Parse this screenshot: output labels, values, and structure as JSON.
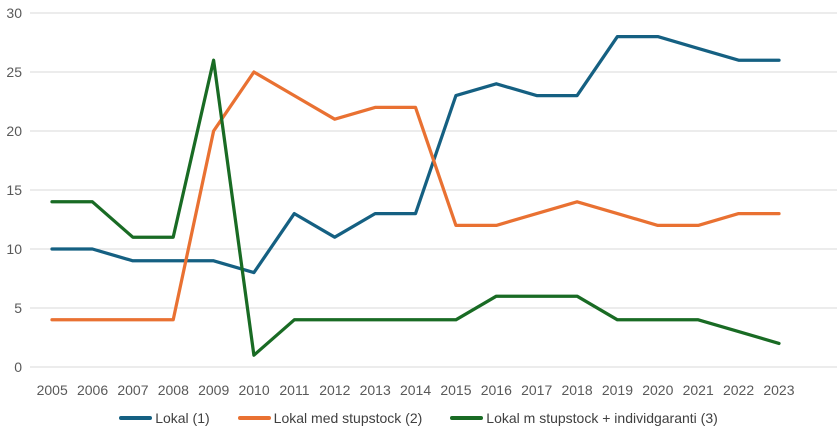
{
  "chart_data": {
    "type": "line",
    "title": "",
    "xlabel": "",
    "ylabel": "",
    "categories": [
      "2005",
      "2006",
      "2007",
      "2008",
      "2009",
      "2010",
      "2011",
      "2012",
      "2013",
      "2014",
      "2015",
      "2016",
      "2017",
      "2018",
      "2019",
      "2020",
      "2021",
      "2022",
      "2023"
    ],
    "series": [
      {
        "name": "Lokal (1)",
        "color": "#156082",
        "values": [
          10,
          10,
          9,
          9,
          9,
          8,
          13,
          11,
          13,
          13,
          23,
          24,
          23,
          23,
          28,
          28,
          27,
          26,
          26
        ]
      },
      {
        "name": "Lokal med stupstock (2)",
        "color": "#E97132",
        "values": [
          4,
          4,
          4,
          4,
          20,
          25,
          23,
          21,
          22,
          22,
          12,
          12,
          13,
          14,
          13,
          12,
          12,
          13,
          13
        ]
      },
      {
        "name": "Lokal m stupstock + individgaranti (3)",
        "color": "#196B24",
        "values": [
          14,
          14,
          11,
          11,
          26,
          1,
          4,
          4,
          4,
          4,
          4,
          6,
          6,
          6,
          4,
          4,
          4,
          3,
          2
        ]
      }
    ],
    "ylim": [
      0,
      30
    ],
    "y_ticks": [
      0,
      5,
      10,
      15,
      20,
      25,
      30
    ],
    "grid": true,
    "legend_position": "bottom"
  },
  "axes": {
    "y_tick_labels": [
      "30",
      "25",
      "20",
      "15",
      "10",
      "5",
      "0"
    ]
  },
  "colors": {
    "background": "#FFFFFF",
    "gridline": "#D9D9D9",
    "axis_text": "#595959",
    "legend_text": "#404040"
  }
}
